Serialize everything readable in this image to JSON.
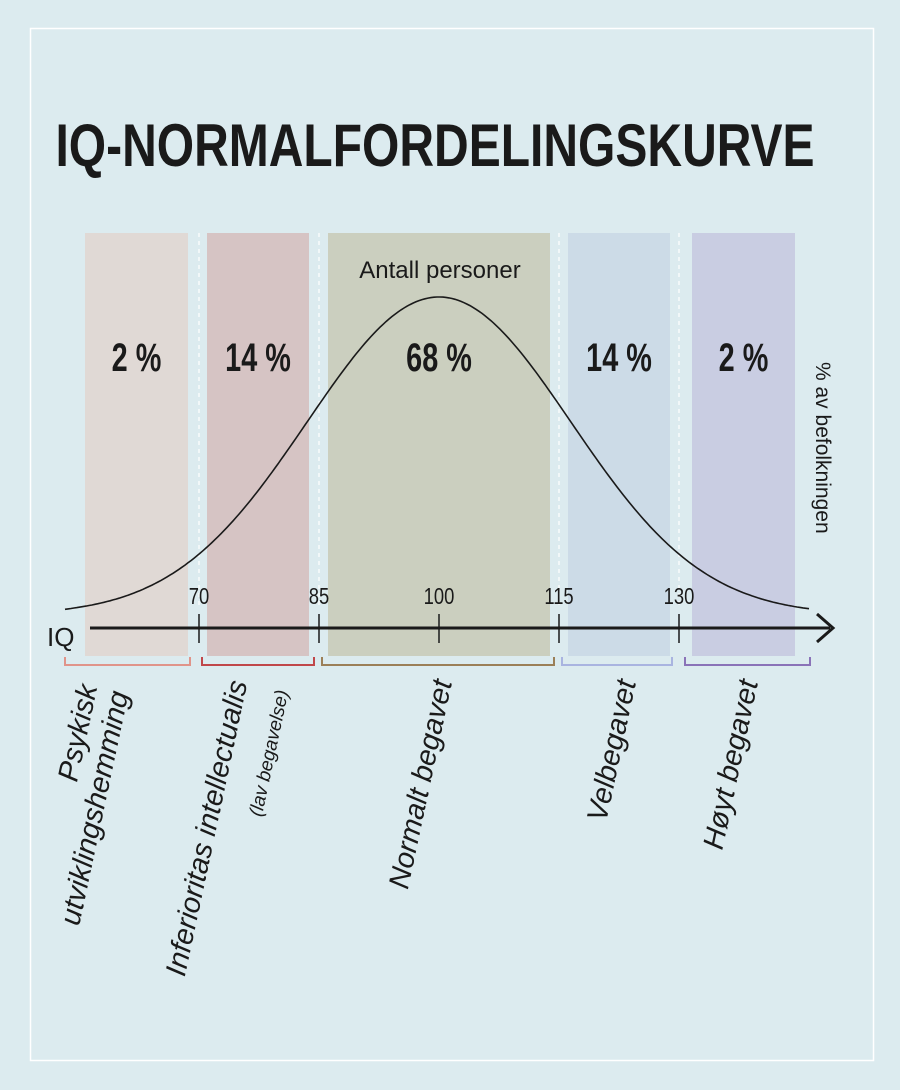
{
  "chart_data": {
    "type": "bell",
    "title": "IQ-NORMALFORDELINGSKURVE",
    "curve_label": "Antall personer",
    "x_label": "IQ",
    "y_label": "% av befolkningen",
    "xlim": [
      56,
      150
    ],
    "xticks": [
      70,
      85,
      100,
      115,
      130
    ],
    "categories": [
      [
        "Psykisk",
        "utviklingshemming"
      ],
      [
        "Inferioritas intellectualis",
        "(lav begavelse)"
      ],
      [
        "Normalt begavet"
      ],
      [
        "Velbegavet"
      ],
      [
        "Høyt begavet"
      ]
    ],
    "values": [
      2,
      14,
      68,
      14,
      2
    ],
    "value_labels": [
      "2 %",
      "14 %",
      "68 %",
      "14 %",
      "2 %"
    ],
    "band_colors": [
      "#e0d9d5",
      "#d6c4c4",
      "#cbcfbf",
      "#ccdbe7",
      "#c9cde2"
    ],
    "label_colors": [
      "#e0948a",
      "#c0474a",
      "#9b7f58",
      "#a9b4e0",
      "#8a73b8"
    ]
  }
}
